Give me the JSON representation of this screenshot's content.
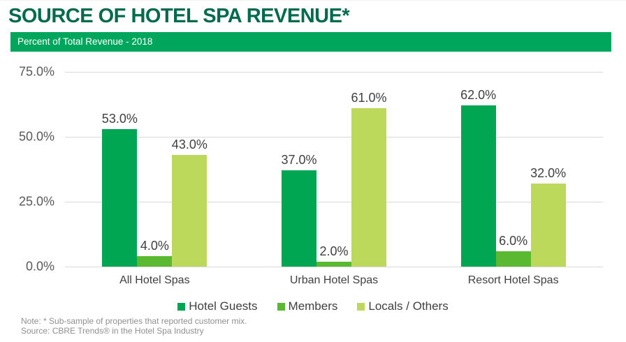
{
  "page": {
    "title": "SOURCE OF HOTEL SPA REVENUE*",
    "subtitle": "Percent of Total Revenue - 2018"
  },
  "notes": {
    "note": "Note: * Sub-sample of properties that reported customer mix.",
    "source": "Source: CBRE Trends® in the Hotel Spa Industry"
  },
  "colors": {
    "title_green": "#006A4D",
    "banner_green": "#00A65C",
    "gridline": "#D9D9D9",
    "axis_text": "#595959",
    "label_text": "#404040",
    "note_text": "#909090"
  },
  "chart_data": {
    "type": "bar",
    "title": "SOURCE OF HOTEL SPA REVENUE*",
    "subtitle": "Percent of Total Revenue - 2018",
    "categories": [
      "All Hotel Spas",
      "Urban Hotel Spas",
      "Resort Hotel Spas"
    ],
    "series": [
      {
        "name": "Hotel Guests",
        "color": "#00A651",
        "values": [
          53.0,
          37.0,
          62.0
        ]
      },
      {
        "name": "Members",
        "color": "#5BB831",
        "values": [
          4.0,
          2.0,
          6.0
        ]
      },
      {
        "name": "Locals / Others",
        "color": "#BDD95B",
        "values": [
          43.0,
          61.0,
          32.0
        ]
      }
    ],
    "data_labels": [
      [
        "53.0%",
        "37.0%",
        "62.0%"
      ],
      [
        "4.0%",
        "2.0%",
        "6.0%"
      ],
      [
        "43.0%",
        "61.0%",
        "32.0%"
      ]
    ],
    "ylim": [
      0,
      75
    ],
    "yticks": [
      0,
      25,
      50,
      75
    ],
    "ytick_labels": [
      "0.0%",
      "25.0%",
      "50.0%",
      "75.0%"
    ],
    "grid": true,
    "legend_position": "bottom"
  }
}
